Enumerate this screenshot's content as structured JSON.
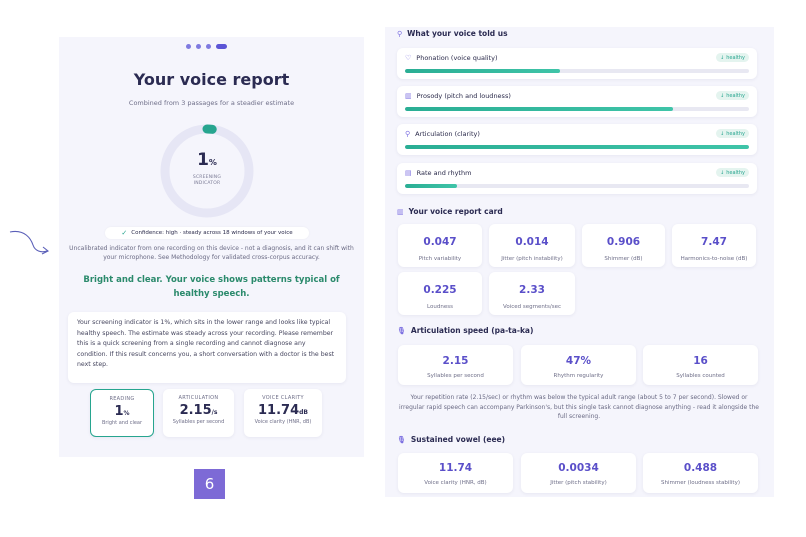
{
  "report": {
    "title": "Your voice report",
    "subtitle": "Combined from 3 passages for a steadier estimate",
    "score": "1",
    "score_unit": "%",
    "score_label": "SCREENING INDICATOR",
    "score_fraction": 0.01,
    "confidence": "Confidence: high · steady across 18 windows of your voice",
    "note": "Uncalibrated indicator from one recording on this device - not a diagnosis, and it can shift with your microphone. See Methodology for validated cross-corpus accuracy.",
    "headline": "Bright and clear. Your voice shows patterns typical of healthy speech.",
    "explanation": "Your screening indicator is 1%, which sits in the lower range and looks like typical healthy speech. The estimate was steady across your recording. Please remember this is a quick screening from a single recording and cannot diagnose any condition. If this result concerns you, a short conversation with a doctor is the best next step.",
    "metrics": [
      {
        "label": "READING",
        "value": "1",
        "unit": "%",
        "sub": "Bright and clear"
      },
      {
        "label": "ARTICULATION",
        "value": "2.15",
        "unit": "/s",
        "sub": "Syllables per second"
      },
      {
        "label": "VOICE CLARITY",
        "value": "11.74",
        "unit": "dB",
        "sub": "Voice clarity (HNR, dB)"
      }
    ]
  },
  "page_number": "6",
  "told_us": {
    "title": "What your voice told us",
    "traits": [
      {
        "name": "Phonation (voice quality)",
        "badge": "healthy",
        "level": 0.45,
        "icon": "heart-icon"
      },
      {
        "name": "Prosody (pitch and loudness)",
        "badge": "healthy",
        "level": 0.78,
        "icon": "bar-chart-icon"
      },
      {
        "name": "Articulation (clarity)",
        "badge": "healthy",
        "level": 1.0,
        "icon": "search-icon"
      },
      {
        "name": "Rate and rhythm",
        "badge": "healthy",
        "level": 0.15,
        "icon": "document-icon"
      }
    ]
  },
  "report_card": {
    "title": "Your voice report card",
    "items": [
      {
        "value": "0.047",
        "label": "Pitch variability"
      },
      {
        "value": "0.014",
        "label": "Jitter (pitch instability)"
      },
      {
        "value": "0.906",
        "label": "Shimmer (dB)"
      },
      {
        "value": "7.47",
        "label": "Harmonics-to-noise (dB)"
      },
      {
        "value": "0.225",
        "label": "Loudness"
      },
      {
        "value": "2.33",
        "label": "Voiced segments/sec"
      }
    ]
  },
  "articulation_speed": {
    "title": "Articulation speed (pa-ta-ka)",
    "items": [
      {
        "value": "2.15",
        "label": "Syllables per second"
      },
      {
        "value": "47%",
        "label": "Rhythm regularity"
      },
      {
        "value": "16",
        "label": "Syllables counted"
      }
    ],
    "text": "Your repetition rate (2.15/sec) or rhythm was below the typical adult range (about 5 to 7 per second). Slowed or irregular rapid speech can accompany Parkinson's, but this single task cannot diagnose anything - read it alongside the full screening."
  },
  "sustained_vowel": {
    "title": "Sustained vowel (eee)",
    "items": [
      {
        "value": "11.74",
        "label": "Voice clarity (HNR, dB)"
      },
      {
        "value": "0.0034",
        "label": "Jitter (pitch stability)"
      },
      {
        "value": "0.488",
        "label": "Shimmer (loudness stability)"
      }
    ]
  },
  "colors": {
    "accent": "#5a4fc9",
    "healthy": "#27a58f",
    "brand": "#7d6ad6"
  }
}
